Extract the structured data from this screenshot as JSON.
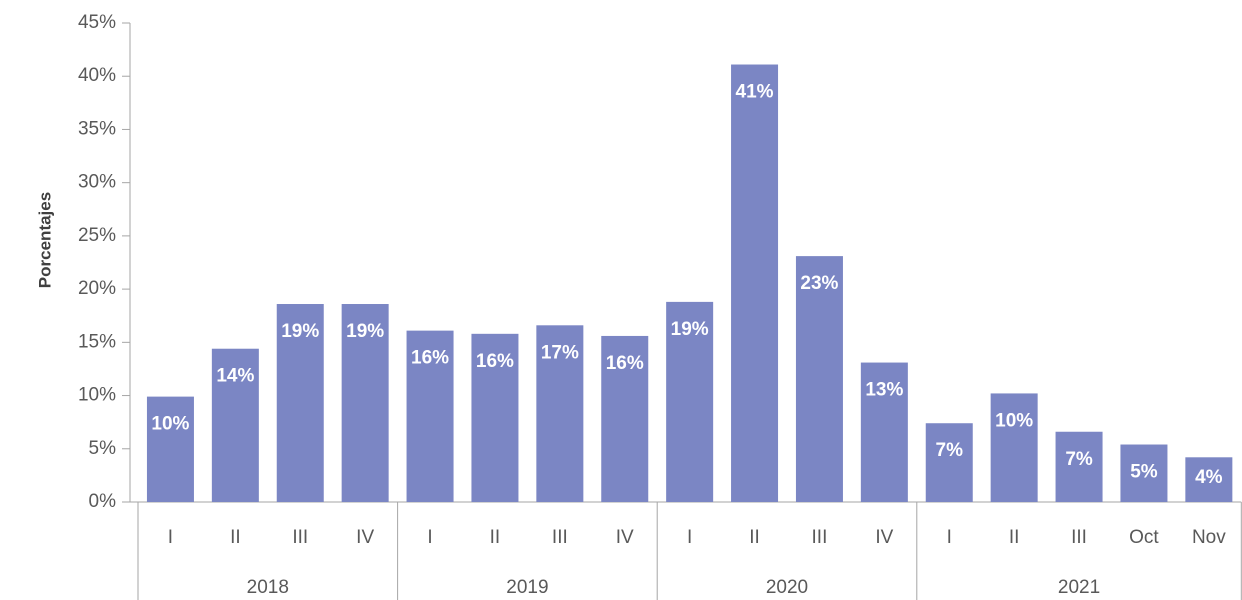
{
  "chart_data": {
    "type": "bar",
    "y_label": "Porcentajes",
    "groups": [
      {
        "name": "2018",
        "categories": [
          "I",
          "II",
          "III",
          "IV"
        ]
      },
      {
        "name": "2019",
        "categories": [
          "I",
          "II",
          "III",
          "IV"
        ]
      },
      {
        "name": "2020",
        "categories": [
          "I",
          "II",
          "III",
          "IV"
        ]
      },
      {
        "name": "2021",
        "categories": [
          "I",
          "II",
          "III",
          "Oct",
          "Nov"
        ]
      }
    ],
    "values": [
      9.9,
      14.4,
      18.6,
      18.6,
      16.1,
      15.8,
      16.6,
      15.6,
      18.8,
      41.1,
      23.1,
      13.1,
      7.4,
      10.2,
      6.6,
      5.4,
      4.2
    ],
    "value_labels": [
      "10%",
      "14%",
      "19%",
      "19%",
      "16%",
      "16%",
      "17%",
      "16%",
      "19%",
      "41%",
      "23%",
      "13%",
      "7%",
      "10%",
      "7%",
      "5%",
      "4%"
    ],
    "color": "#7b86c4",
    "ylim": [
      0,
      45
    ],
    "yticks": [
      {
        "value": 0,
        "label": "0%"
      },
      {
        "value": 5,
        "label": "5%"
      },
      {
        "value": 10,
        "label": "10%"
      },
      {
        "value": 15,
        "label": "15%"
      },
      {
        "value": 20,
        "label": "20%"
      },
      {
        "value": 25,
        "label": "25%"
      },
      {
        "value": 30,
        "label": "30%"
      },
      {
        "value": 35,
        "label": "35%"
      },
      {
        "value": 40,
        "label": "40%"
      },
      {
        "value": 45,
        "label": "45%"
      }
    ],
    "grid": false
  }
}
